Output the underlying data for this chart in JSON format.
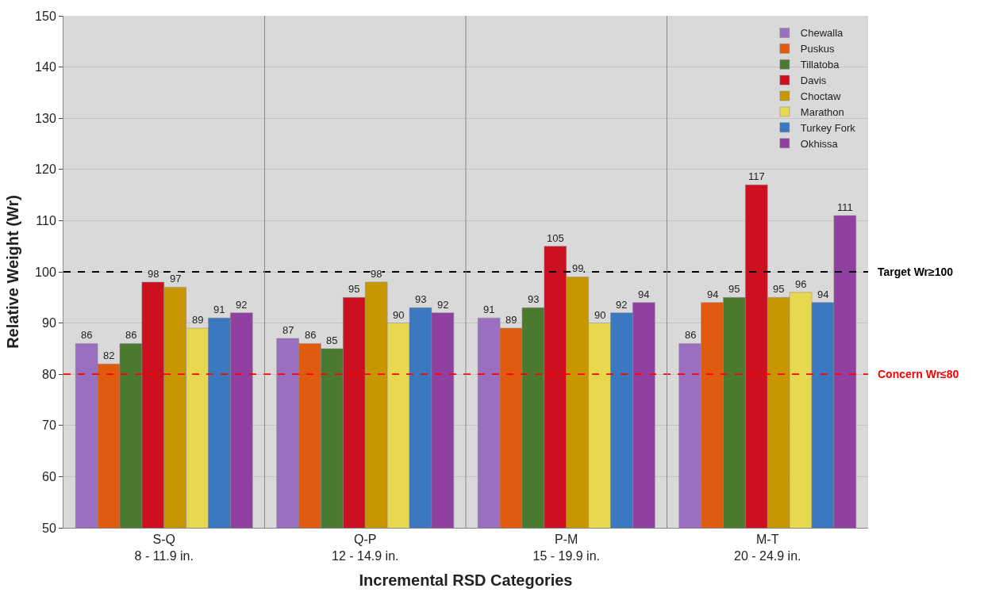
{
  "chart_data": {
    "type": "bar",
    "xlabel": "Incremental RSD Categories",
    "ylabel": "Relative Weight (Wr)",
    "categories": [
      "S-Q\n8 - 11.9 in.",
      "Q-P\n12 - 14.9 in.",
      "P-M\n15 - 19.9 in.",
      "M-T\n20 - 24.9 in."
    ],
    "series": [
      {
        "name": "Chewalla",
        "color": "#9b6fc0",
        "values": [
          86,
          87,
          91,
          86
        ]
      },
      {
        "name": "Puskus",
        "color": "#e05a10",
        "values": [
          82,
          86,
          89,
          94
        ]
      },
      {
        "name": "Tillatoba",
        "color": "#4a7a30",
        "values": [
          86,
          85,
          93,
          95
        ]
      },
      {
        "name": "Davis",
        "color": "#cc1020",
        "values": [
          98,
          95,
          105,
          117
        ]
      },
      {
        "name": "Choctaw",
        "color": "#c89600",
        "values": [
          97,
          98,
          99,
          95
        ]
      },
      {
        "name": "Marathon",
        "color": "#e8d850",
        "values": [
          89,
          90,
          90,
          96
        ]
      },
      {
        "name": "Turkey Fork",
        "color": "#3a78c0",
        "values": [
          91,
          93,
          92,
          94
        ]
      },
      {
        "name": "Okhissa",
        "color": "#9040a0",
        "values": [
          92,
          92,
          94,
          111
        ]
      }
    ],
    "ylim": [
      50,
      150
    ],
    "yticks": [
      50,
      60,
      70,
      80,
      90,
      100,
      110,
      120,
      130,
      140,
      150
    ],
    "ref_lines": [
      {
        "axis": "y",
        "value": 100,
        "label": "Target Wr≥100",
        "color": "#000000",
        "line_style": "dashed"
      },
      {
        "axis": "y",
        "value": 80,
        "label": "Concern Wr≤80",
        "color": "#ff0000",
        "line_style": "dashed"
      }
    ],
    "data_labels": true,
    "grid": "y",
    "legend": "top right"
  }
}
